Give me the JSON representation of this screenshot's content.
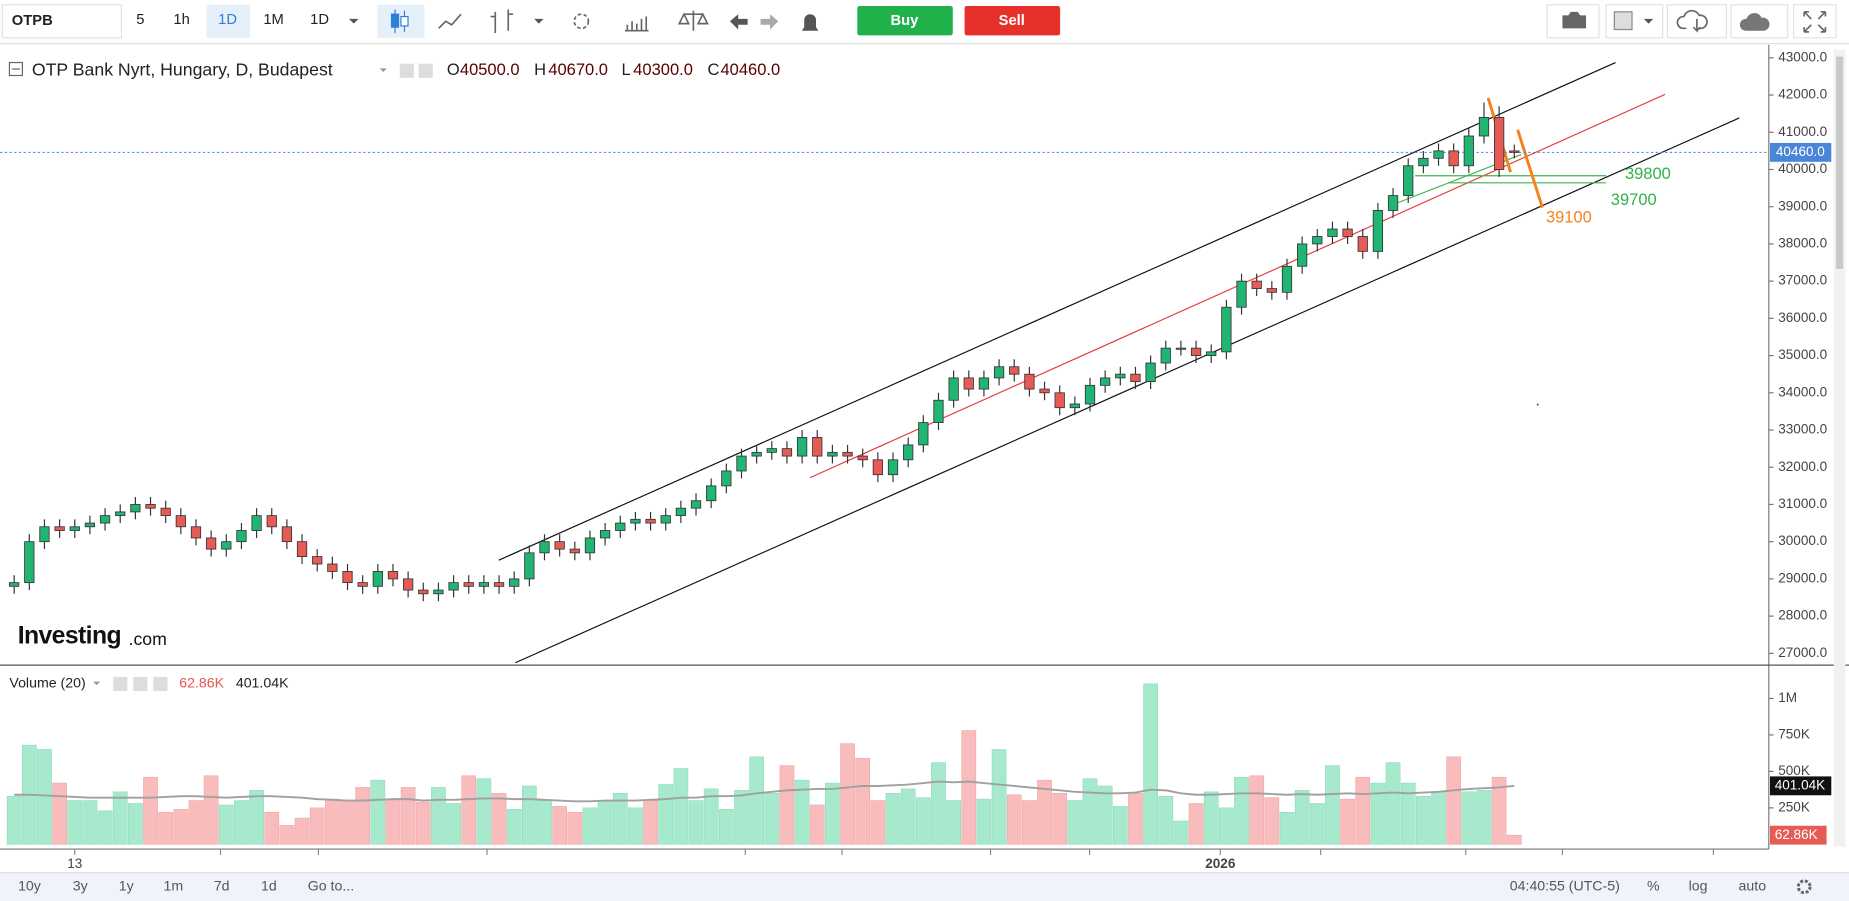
{
  "toolbar": {
    "symbol": "OTPB",
    "intervals": [
      "5",
      "1h",
      "1D",
      "1M",
      "1D"
    ],
    "buy": "Buy",
    "sell": "Sell"
  },
  "chart_data": {
    "type": "candlestick",
    "title": "OTP Bank Nyrt, Hungary, D, Budapest",
    "legend": {
      "o_label": "O",
      "o": "40500.0",
      "h_label": "H",
      "h": "40670.0",
      "l_label": "L",
      "l": "40300.0",
      "c_label": "C",
      "c": "40460.0"
    },
    "colors": {
      "up": "#21b573",
      "down": "#e65b55",
      "up_volume": "#a6e9cd",
      "down_volume": "#f8bcbc",
      "ma": "#a0a0a0",
      "last_price": "#4a86d8"
    },
    "open": [
      28800,
      28900,
      30000,
      30400,
      30300,
      30400,
      30500,
      30700,
      30800,
      31000,
      30900,
      30700,
      30400,
      30100,
      29800,
      30000,
      30300,
      30700,
      30400,
      30000,
      29600,
      29400,
      29200,
      28900,
      28800,
      29200,
      29000,
      28700,
      28600,
      28700,
      28900,
      28800,
      28900,
      28800,
      29000,
      29700,
      30000,
      29800,
      29700,
      30100,
      30300,
      30500,
      30600,
      30500,
      30700,
      30900,
      31100,
      31500,
      31900,
      32300,
      32400,
      32500,
      32300,
      32800,
      32300,
      32400,
      32300,
      32200,
      31800,
      32200,
      32600,
      33200,
      33800,
      34400,
      34100,
      34400,
      34700,
      34500,
      34100,
      34000,
      33600,
      33700,
      34200,
      34400,
      34500,
      34300,
      34800,
      35200,
      35200,
      35000,
      35100,
      36300,
      37000,
      36800,
      36700,
      37400,
      38000,
      38200,
      38400,
      38200,
      37800,
      38900,
      39300,
      40100,
      40300,
      40500,
      40100,
      40900,
      41400,
      40500
    ],
    "high": [
      29100,
      30200,
      30600,
      30600,
      30600,
      30700,
      30900,
      31000,
      31200,
      31200,
      31100,
      30900,
      30600,
      30300,
      30200,
      30500,
      30900,
      30900,
      30600,
      30200,
      29800,
      29600,
      29400,
      29100,
      29400,
      29400,
      29200,
      28900,
      28900,
      29100,
      29100,
      29100,
      29100,
      29200,
      29900,
      30200,
      30200,
      30000,
      30300,
      30500,
      30700,
      30800,
      30800,
      30900,
      31100,
      31300,
      31700,
      32100,
      32500,
      32600,
      32700,
      32700,
      33000,
      33000,
      32600,
      32600,
      32500,
      32400,
      32400,
      32800,
      33400,
      34000,
      34600,
      34600,
      34600,
      34900,
      34900,
      34700,
      34300,
      34200,
      33900,
      34400,
      34600,
      34700,
      34700,
      35000,
      35400,
      35400,
      35400,
      35300,
      36500,
      37200,
      37200,
      37000,
      37600,
      38200,
      38400,
      38600,
      38600,
      38400,
      39100,
      39500,
      40300,
      40500,
      40700,
      40700,
      41100,
      41800,
      41700,
      40670
    ],
    "low": [
      28600,
      28700,
      29800,
      30100,
      30100,
      30200,
      30300,
      30500,
      30600,
      30700,
      30500,
      30200,
      29900,
      29600,
      29600,
      29800,
      30100,
      30200,
      29800,
      29400,
      29200,
      29000,
      28700,
      28600,
      28600,
      28800,
      28500,
      28400,
      28400,
      28500,
      28600,
      28600,
      28600,
      28600,
      28800,
      29500,
      29600,
      29500,
      29500,
      29900,
      30100,
      30300,
      30300,
      30300,
      30500,
      30700,
      30900,
      31300,
      31700,
      32100,
      32200,
      32100,
      32100,
      32100,
      32100,
      32100,
      32000,
      31600,
      31600,
      32000,
      32400,
      33000,
      33600,
      33900,
      33900,
      34200,
      34300,
      33900,
      33800,
      33400,
      33400,
      33500,
      34000,
      34200,
      34100,
      34100,
      34600,
      35000,
      34800,
      34800,
      34900,
      36100,
      36600,
      36500,
      36500,
      37200,
      37800,
      38000,
      38000,
      37600,
      37600,
      38700,
      39100,
      39900,
      40100,
      39900,
      39900,
      40700,
      39800,
      40300
    ],
    "close": [
      28900,
      30000,
      30400,
      30300,
      30400,
      30500,
      30700,
      30800,
      31000,
      30900,
      30700,
      30400,
      30100,
      29800,
      30000,
      30300,
      30700,
      30400,
      30000,
      29600,
      29400,
      29200,
      28900,
      28800,
      29200,
      29000,
      28700,
      28600,
      28700,
      28900,
      28800,
      28900,
      28800,
      29000,
      29700,
      30000,
      29800,
      29700,
      30100,
      30300,
      30500,
      30600,
      30500,
      30700,
      30900,
      31100,
      31500,
      31900,
      32300,
      32400,
      32500,
      32300,
      32800,
      32300,
      32400,
      32300,
      32200,
      31800,
      32200,
      32600,
      33200,
      33800,
      34400,
      34100,
      34400,
      34700,
      34500,
      34100,
      34000,
      33600,
      33700,
      34200,
      34400,
      34500,
      34300,
      34800,
      35200,
      35200,
      35000,
      35100,
      36300,
      37000,
      36800,
      36700,
      37400,
      38000,
      38200,
      38400,
      38200,
      37800,
      38900,
      39300,
      40100,
      40300,
      40500,
      40100,
      40900,
      41400,
      40000,
      40460
    ],
    "ylim": [
      26715,
      43349
    ],
    "yticks": [
      {
        "value": 27000,
        "label": "27000.0"
      },
      {
        "value": 28000,
        "label": "28000.0"
      },
      {
        "value": 29000,
        "label": "29000.0"
      },
      {
        "value": 30000,
        "label": "30000.0"
      },
      {
        "value": 31000,
        "label": "31000.0"
      },
      {
        "value": 32000,
        "label": "32000.0"
      },
      {
        "value": 33000,
        "label": "33000.0"
      },
      {
        "value": 34000,
        "label": "34000.0"
      },
      {
        "value": 35000,
        "label": "35000.0"
      },
      {
        "value": 36000,
        "label": "36000.0"
      },
      {
        "value": 37000,
        "label": "37000.0"
      },
      {
        "value": 38000,
        "label": "38000.0"
      },
      {
        "value": 39000,
        "label": "39000.0"
      },
      {
        "value": 40000,
        "label": "40000.0"
      },
      {
        "value": 41000,
        "label": "41000.0"
      },
      {
        "value": 42000,
        "label": "42000.0"
      },
      {
        "value": 43000,
        "label": "43000.0"
      }
    ],
    "last_price_label": "40460.0",
    "xticks": [
      {
        "value": 4,
        "label": "13"
      },
      {
        "value": 79.6,
        "label": "2026"
      }
    ],
    "annotations": [
      "39800",
      "39700",
      "39100"
    ],
    "volume": {
      "name": "Volume (20)",
      "values": [
        330000,
        680000,
        650000,
        420000,
        300000,
        300000,
        230000,
        360000,
        280000,
        460000,
        220000,
        240000,
        300000,
        470000,
        270000,
        300000,
        370000,
        220000,
        130000,
        180000,
        250000,
        310000,
        300000,
        390000,
        440000,
        310000,
        390000,
        290000,
        390000,
        280000,
        470000,
        450000,
        350000,
        240000,
        400000,
        300000,
        260000,
        220000,
        250000,
        300000,
        350000,
        250000,
        300000,
        410000,
        520000,
        300000,
        380000,
        240000,
        370000,
        600000,
        350000,
        540000,
        440000,
        270000,
        420000,
        690000,
        590000,
        300000,
        350000,
        380000,
        320000,
        560000,
        300000,
        780000,
        310000,
        650000,
        340000,
        300000,
        440000,
        350000,
        300000,
        450000,
        400000,
        260000,
        350000,
        1100000,
        330000,
        160000,
        280000,
        360000,
        250000,
        460000,
        470000,
        320000,
        220000,
        370000,
        280000,
        540000,
        310000,
        460000,
        420000,
        560000,
        420000,
        330000,
        360000,
        600000,
        360000,
        370000,
        460000,
        62860
      ],
      "ma": [
        340000,
        340000,
        335000,
        330000,
        325000,
        320000,
        320000,
        320000,
        320000,
        320000,
        325000,
        330000,
        330000,
        325000,
        320000,
        325000,
        330000,
        330000,
        325000,
        320000,
        310000,
        305000,
        300000,
        300000,
        305000,
        310000,
        310000,
        300000,
        305000,
        305000,
        310000,
        315000,
        315000,
        310000,
        310000,
        305000,
        300000,
        295000,
        295000,
        300000,
        300000,
        300000,
        305000,
        310000,
        320000,
        320000,
        330000,
        330000,
        335000,
        350000,
        360000,
        370000,
        375000,
        380000,
        380000,
        390000,
        400000,
        400000,
        405000,
        410000,
        420000,
        430000,
        425000,
        430000,
        420000,
        410000,
        400000,
        390000,
        380000,
        370000,
        360000,
        355000,
        350000,
        350000,
        355000,
        375000,
        370000,
        350000,
        340000,
        340000,
        345000,
        350000,
        350000,
        345000,
        340000,
        345000,
        340000,
        345000,
        350000,
        345000,
        350000,
        355000,
        350000,
        355000,
        360000,
        370000,
        380000,
        385000,
        390000,
        401040
      ],
      "ylim": [
        0,
        1180000
      ],
      "yticks": [
        {
          "value": 250000,
          "label": "250K"
        },
        {
          "value": 500000,
          "label": "500K"
        },
        {
          "value": 750000,
          "label": "750K"
        },
        {
          "value": 1000000,
          "label": "1M"
        }
      ],
      "last_label": "62.86K",
      "ma_last_label": "401.04K"
    }
  },
  "logo": {
    "brand": "Investing",
    "suffix": ".com"
  },
  "bottom_bar": {
    "ranges": [
      "10y",
      "3y",
      "1y",
      "1m",
      "7d",
      "1d"
    ],
    "goto": "Go to...",
    "clock": "04:40:55 (UTC-5)",
    "percent": "%",
    "log": "log",
    "auto": "auto"
  }
}
